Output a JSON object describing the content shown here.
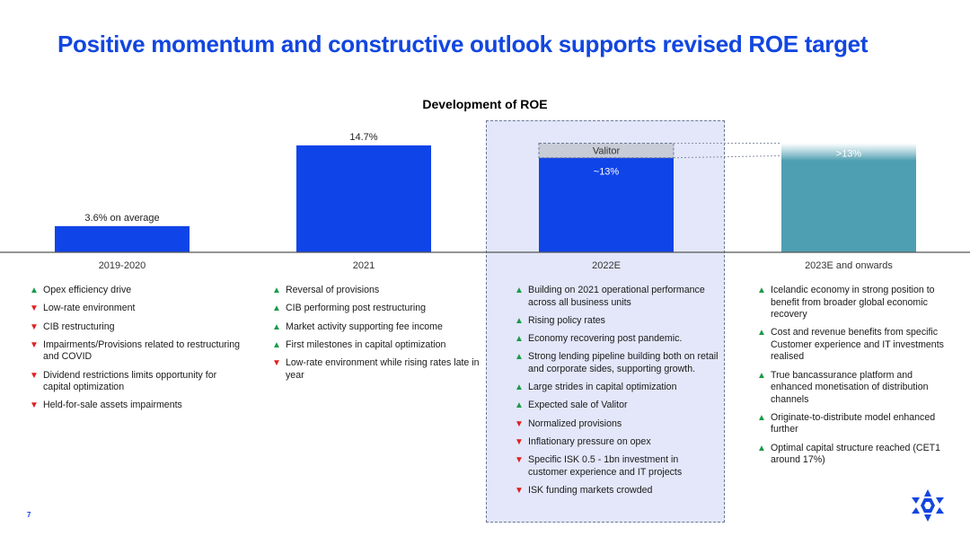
{
  "title": "Positive momentum and constructive outlook supports revised ROE target",
  "page_number": "7",
  "colors": {
    "title": "#1246e0",
    "bar_blue": "#0f44e8",
    "bar_teal": "#4f9fb2",
    "valitor_fill": "#c7ccd6",
    "highlight_bg": "#e3e7f9",
    "up_arrow": "#1b9a4a",
    "down_arrow": "#e02020"
  },
  "chart_data": {
    "type": "bar",
    "title": "Development of ROE",
    "categories": [
      "2019-2020",
      "2021",
      "2022E",
      "2023E and onwards"
    ],
    "values": [
      3.6,
      14.7,
      13,
      13
    ],
    "value_labels": [
      "3.6% on average",
      "14.7%",
      "~13%",
      ">13%"
    ],
    "stacked_segment": {
      "category": "2022E",
      "name": "Valitor",
      "value": 2
    },
    "highlighted_category": "2022E",
    "ylim": [
      0,
      16
    ],
    "grid": false,
    "legend": "none",
    "xlabel": "",
    "ylabel": ""
  },
  "columns": [
    {
      "items": [
        {
          "dir": "up",
          "text": "Opex efficiency drive"
        },
        {
          "dir": "down",
          "text": "Low-rate environment"
        },
        {
          "dir": "down",
          "text": "CIB restructuring"
        },
        {
          "dir": "down",
          "text": "Impairments/Provisions related to restructuring and COVID"
        },
        {
          "dir": "down",
          "text": "Dividend restrictions limits opportunity for capital optimization"
        },
        {
          "dir": "down",
          "text": "Held-for-sale assets impairments"
        }
      ]
    },
    {
      "items": [
        {
          "dir": "up",
          "text": "Reversal of provisions"
        },
        {
          "dir": "up",
          "text": "CIB performing post restructuring"
        },
        {
          "dir": "up",
          "text": "Market activity supporting fee income"
        },
        {
          "dir": "up",
          "text": "First milestones in capital optimization"
        },
        {
          "dir": "down",
          "text": "Low-rate environment while rising rates late in year"
        }
      ]
    },
    {
      "items": [
        {
          "dir": "up",
          "text": "Building on 2021 operational performance across all business units"
        },
        {
          "dir": "up",
          "text": "Rising policy rates"
        },
        {
          "dir": "up",
          "text": "Economy recovering post pandemic."
        },
        {
          "dir": "up",
          "text": "Strong lending pipeline building both on retail and corporate sides, supporting growth."
        },
        {
          "dir": "up",
          "text": "Large strides in capital optimization"
        },
        {
          "dir": "up",
          "text": "Expected sale of Valitor"
        },
        {
          "dir": "down",
          "text": "Normalized provisions"
        },
        {
          "dir": "down",
          "text": "Inflationary pressure on opex"
        },
        {
          "dir": "down",
          "text": "Specific ISK 0.5 - 1bn investment in customer experience and IT projects"
        },
        {
          "dir": "down",
          "text": "ISK funding markets crowded"
        }
      ]
    },
    {
      "items": [
        {
          "dir": "up",
          "text": "Icelandic economy in strong position to benefit from broader global economic recovery"
        },
        {
          "dir": "up",
          "text": "Cost and revenue benefits from specific Customer experience and IT investments realised"
        },
        {
          "dir": "up",
          "text": "True bancassurance platform and enhanced monetisation of distribution channels"
        },
        {
          "dir": "up",
          "text": "Originate-to-distribute model enhanced further"
        },
        {
          "dir": "up",
          "text": "Optimal capital structure reached (CET1 around 17%)"
        }
      ]
    }
  ],
  "arrow_glyphs": {
    "up": "▲",
    "down": "▼"
  },
  "logo_icon": "star-logo-icon"
}
